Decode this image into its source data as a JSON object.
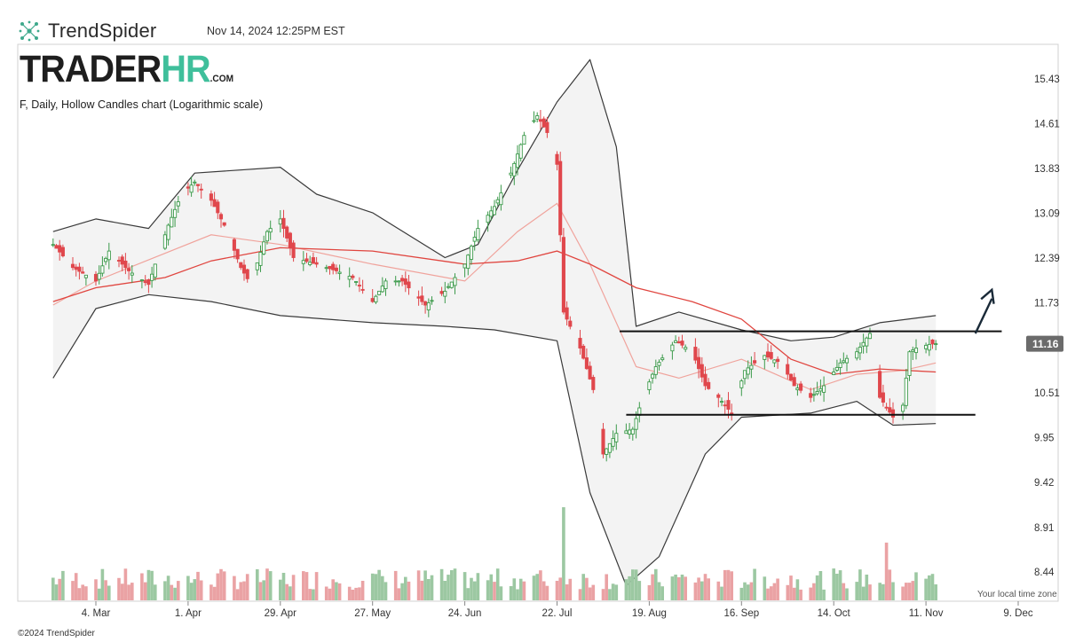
{
  "header": {
    "brand": "TrendSpider",
    "timestamp": "Nov 14, 2024 12:25PM EST",
    "logo_part1": "TRADER",
    "logo_part2": "HR",
    "logo_part3": ".COM",
    "subtitle": "F, Daily, Hollow Candles chart (Logarithmic scale)"
  },
  "footer": {
    "copyright": "©2024 TrendSpider",
    "local_time_note": "Your local time zone"
  },
  "colors": {
    "up": "#3c9a4b",
    "down": "#e0474c",
    "ma_fast": "#f0a39c",
    "ma_slow": "#e0453f",
    "band": "#3a3a3a",
    "band_fill": "#f3f3f3",
    "vol_up": "#9cc8a2",
    "vol_down": "#eaa2a4",
    "badge": "#6b6b6b",
    "annotation": "#111111",
    "arrow": "#1a2a38"
  },
  "chart_data": {
    "type": "candlestick",
    "ticker": "F",
    "timeframe": "Daily",
    "scale": "log",
    "x_tick_labels": [
      {
        "label": "4. Mar",
        "date": "2024-03-04"
      },
      {
        "label": "1. Apr",
        "date": "2024-04-01"
      },
      {
        "label": "29. Apr",
        "date": "2024-04-29"
      },
      {
        "label": "27. May",
        "date": "2024-05-27"
      },
      {
        "label": "24. Jun",
        "date": "2024-06-24"
      },
      {
        "label": "22. Jul",
        "date": "2024-07-22"
      },
      {
        "label": "19. Aug",
        "date": "2024-08-19"
      },
      {
        "label": "16. Sep",
        "date": "2024-09-16"
      },
      {
        "label": "14. Oct",
        "date": "2024-10-14"
      },
      {
        "label": "11. Nov",
        "date": "2024-11-11"
      },
      {
        "label": "9. Dec",
        "date": "2024-12-09"
      }
    ],
    "y_tick_labels": [
      "15.43",
      "14.61",
      "13.83",
      "13.09",
      "12.39",
      "11.73",
      "10.51",
      "9.95",
      "9.42",
      "8.91",
      "8.44"
    ],
    "y_range": [
      8.2,
      15.9
    ],
    "current_price": "11.16",
    "price_path": [
      [
        "2024-02-20",
        12.6
      ],
      [
        "2024-02-26",
        12.25
      ],
      [
        "2024-03-04",
        12.05
      ],
      [
        "2024-03-08",
        12.5
      ],
      [
        "2024-03-14",
        12.2
      ],
      [
        "2024-03-20",
        12.0
      ],
      [
        "2024-03-26",
        12.9
      ],
      [
        "2024-03-30",
        13.4
      ],
      [
        "2024-04-03",
        13.6
      ],
      [
        "2024-04-08",
        13.3
      ],
      [
        "2024-04-12",
        12.9
      ],
      [
        "2024-04-17",
        12.25
      ],
      [
        "2024-04-20",
        12.0
      ],
      [
        "2024-04-25",
        12.8
      ],
      [
        "2024-04-29",
        13.0
      ],
      [
        "2024-05-03",
        12.4
      ],
      [
        "2024-05-10",
        12.3
      ],
      [
        "2024-05-16",
        12.2
      ],
      [
        "2024-05-21",
        12.1
      ],
      [
        "2024-05-27",
        11.75
      ],
      [
        "2024-05-31",
        12.05
      ],
      [
        "2024-06-05",
        12.05
      ],
      [
        "2024-06-12",
        11.7
      ],
      [
        "2024-06-18",
        11.9
      ],
      [
        "2024-06-24",
        12.3
      ],
      [
        "2024-06-28",
        12.85
      ],
      [
        "2024-07-03",
        13.2
      ],
      [
        "2024-07-08",
        13.75
      ],
      [
        "2024-07-12",
        14.4
      ],
      [
        "2024-07-16",
        14.75
      ],
      [
        "2024-07-20",
        14.35
      ],
      [
        "2024-07-22",
        13.9
      ],
      [
        "2024-07-24",
        11.6
      ],
      [
        "2024-07-29",
        11.1
      ],
      [
        "2024-08-02",
        10.55
      ],
      [
        "2024-08-05",
        9.75
      ],
      [
        "2024-08-09",
        10.0
      ],
      [
        "2024-08-14",
        10.05
      ],
      [
        "2024-08-17",
        10.45
      ],
      [
        "2024-08-21",
        10.85
      ],
      [
        "2024-08-27",
        11.2
      ],
      [
        "2024-09-01",
        11.05
      ],
      [
        "2024-09-05",
        10.6
      ],
      [
        "2024-09-09",
        10.45
      ],
      [
        "2024-09-13",
        10.25
      ],
      [
        "2024-09-17",
        10.8
      ],
      [
        "2024-09-23",
        11.0
      ],
      [
        "2024-09-28",
        10.9
      ],
      [
        "2024-10-02",
        10.6
      ],
      [
        "2024-10-07",
        10.45
      ],
      [
        "2024-10-11",
        10.6
      ],
      [
        "2024-10-16",
        10.9
      ],
      [
        "2024-10-21",
        11.05
      ],
      [
        "2024-10-25",
        11.3
      ],
      [
        "2024-10-28",
        10.45
      ],
      [
        "2024-11-01",
        10.2
      ],
      [
        "2024-11-04",
        10.35
      ],
      [
        "2024-11-06",
        11.05
      ],
      [
        "2024-11-08",
        11.1
      ],
      [
        "2024-11-12",
        11.15
      ],
      [
        "2024-11-14",
        11.16
      ]
    ],
    "ma_slow_path": [
      [
        "2024-02-20",
        11.75
      ],
      [
        "2024-03-04",
        11.95
      ],
      [
        "2024-03-25",
        12.1
      ],
      [
        "2024-04-08",
        12.35
      ],
      [
        "2024-04-29",
        12.55
      ],
      [
        "2024-05-27",
        12.5
      ],
      [
        "2024-06-24",
        12.3
      ],
      [
        "2024-07-10",
        12.35
      ],
      [
        "2024-07-22",
        12.5
      ],
      [
        "2024-08-01",
        12.3
      ],
      [
        "2024-08-15",
        11.95
      ],
      [
        "2024-09-01",
        11.75
      ],
      [
        "2024-09-16",
        11.5
      ],
      [
        "2024-10-01",
        10.95
      ],
      [
        "2024-10-14",
        10.75
      ],
      [
        "2024-10-28",
        10.82
      ],
      [
        "2024-11-14",
        10.78
      ]
    ],
    "ma_fast_path": [
      [
        "2024-02-20",
        11.7
      ],
      [
        "2024-03-04",
        12.05
      ],
      [
        "2024-04-08",
        12.75
      ],
      [
        "2024-04-29",
        12.6
      ],
      [
        "2024-05-27",
        12.3
      ],
      [
        "2024-06-24",
        12.05
      ],
      [
        "2024-07-10",
        12.8
      ],
      [
        "2024-07-22",
        13.25
      ],
      [
        "2024-08-01",
        12.3
      ],
      [
        "2024-08-15",
        10.85
      ],
      [
        "2024-08-28",
        10.7
      ],
      [
        "2024-09-16",
        10.95
      ],
      [
        "2024-10-07",
        10.55
      ],
      [
        "2024-10-21",
        10.75
      ],
      [
        "2024-11-04",
        10.8
      ],
      [
        "2024-11-14",
        10.9
      ]
    ],
    "band_upper_path": [
      [
        "2024-02-20",
        12.8
      ],
      [
        "2024-03-04",
        13.0
      ],
      [
        "2024-03-20",
        12.85
      ],
      [
        "2024-04-03",
        13.75
      ],
      [
        "2024-04-29",
        13.85
      ],
      [
        "2024-05-10",
        13.4
      ],
      [
        "2024-05-27",
        13.1
      ],
      [
        "2024-06-18",
        12.4
      ],
      [
        "2024-06-28",
        12.6
      ],
      [
        "2024-07-10",
        13.8
      ],
      [
        "2024-07-22",
        15.0
      ],
      [
        "2024-08-01",
        15.8
      ],
      [
        "2024-08-09",
        14.2
      ],
      [
        "2024-08-15",
        11.4
      ],
      [
        "2024-08-28",
        11.6
      ],
      [
        "2024-09-16",
        11.35
      ],
      [
        "2024-10-01",
        11.2
      ],
      [
        "2024-10-14",
        11.25
      ],
      [
        "2024-10-28",
        11.45
      ],
      [
        "2024-11-14",
        11.55
      ]
    ],
    "band_lower_path": [
      [
        "2024-02-20",
        10.7
      ],
      [
        "2024-03-04",
        11.65
      ],
      [
        "2024-03-20",
        11.85
      ],
      [
        "2024-04-08",
        11.75
      ],
      [
        "2024-04-29",
        11.55
      ],
      [
        "2024-05-27",
        11.45
      ],
      [
        "2024-06-18",
        11.4
      ],
      [
        "2024-07-03",
        11.35
      ],
      [
        "2024-07-22",
        11.2
      ],
      [
        "2024-08-01",
        9.3
      ],
      [
        "2024-08-12",
        8.3
      ],
      [
        "2024-08-22",
        8.6
      ],
      [
        "2024-09-05",
        9.75
      ],
      [
        "2024-09-16",
        10.2
      ],
      [
        "2024-10-07",
        10.25
      ],
      [
        "2024-10-21",
        10.4
      ],
      [
        "2024-11-01",
        10.1
      ],
      [
        "2024-11-14",
        10.12
      ]
    ],
    "annotations": [
      {
        "type": "horizontal_line",
        "level": 11.33,
        "from": "2024-08-10",
        "to": "2024-12-04"
      },
      {
        "type": "horizontal_line",
        "level": 10.23,
        "from": "2024-08-12",
        "to": "2024-11-26"
      },
      {
        "type": "arrow",
        "from": [
          "2024-11-26",
          11.3
        ],
        "to": [
          "2024-12-01",
          11.92
        ]
      }
    ],
    "volume_peaks": [
      {
        "date": "2024-07-24",
        "relative": 1.0
      },
      {
        "date": "2024-10-30",
        "relative": 0.62
      }
    ]
  }
}
